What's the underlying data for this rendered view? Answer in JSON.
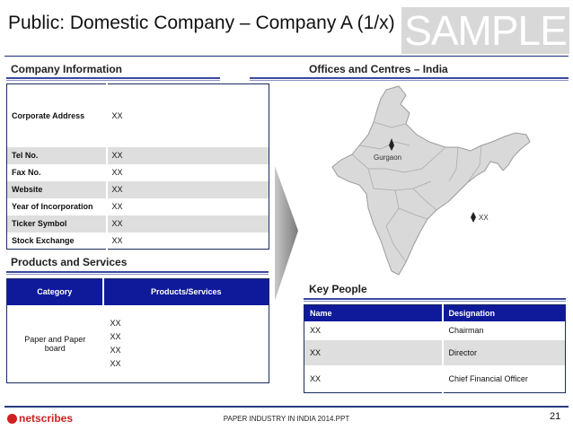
{
  "title": "Public: Domestic Company – Company A (1/x)",
  "watermark": "SAMPLE",
  "company_info": {
    "heading": "Company Information",
    "rows": [
      {
        "label": "Corporate Address",
        "value": "XX"
      },
      {
        "label": "Tel No.",
        "value": "XX"
      },
      {
        "label": "Fax No.",
        "value": "XX"
      },
      {
        "label": "Website",
        "value": "XX"
      },
      {
        "label": "Year of Incorporation",
        "value": "XX"
      },
      {
        "label": "Ticker Symbol",
        "value": "XX"
      },
      {
        "label": "Stock Exchange",
        "value": "XX"
      }
    ]
  },
  "offices": {
    "heading": "Offices and Centres – India",
    "markers": [
      {
        "label": "Gurgaon"
      },
      {
        "label": "XX"
      }
    ]
  },
  "products": {
    "heading": "Products and Services",
    "columns": [
      "Category",
      "Products/Services"
    ],
    "category": "Paper and Paper board",
    "items": [
      "XX",
      "XX",
      "XX",
      "XX"
    ]
  },
  "key_people": {
    "heading": "Key People",
    "columns": [
      "Name",
      "Designation"
    ],
    "rows": [
      {
        "name": "XX",
        "designation": "Chairman"
      },
      {
        "name": "XX",
        "designation": "Director"
      },
      {
        "name": "XX",
        "designation": "Chief Financial Officer"
      }
    ]
  },
  "footer": {
    "logo": "netscribes",
    "text": "PAPER INDUSTRY IN INDIA 2014.PPT",
    "page": "21"
  },
  "colors": {
    "header_blue": "#0f1a9a",
    "rule_blue": "#1a2a80",
    "row_gray": "#dedede"
  }
}
